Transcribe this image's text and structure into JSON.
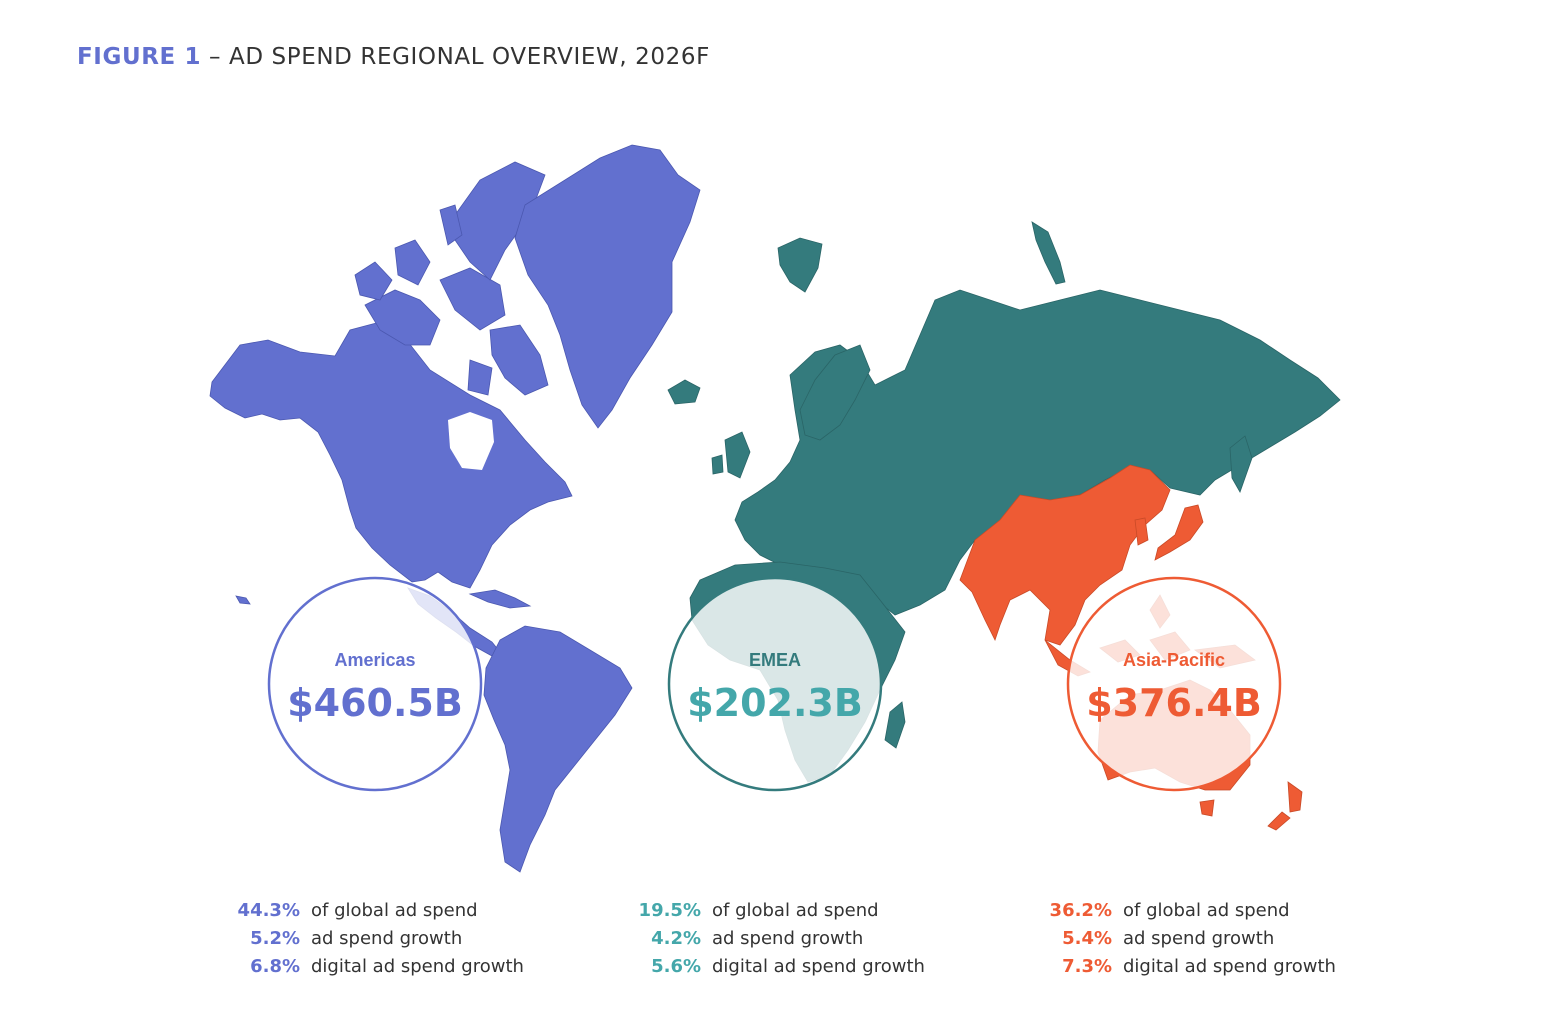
{
  "figure": {
    "label": "FIGURE 1",
    "title": " – AD SPEND REGIONAL OVERVIEW, 2026F"
  },
  "colors": {
    "americas": "#6270cf",
    "emea": "#347b7d",
    "emea_value": "#44a7aa",
    "asia_pacific": "#ee5b34"
  },
  "regions": [
    {
      "name": "Americas",
      "value": "$460.5B",
      "stats": [
        {
          "value": "44.3%",
          "label": "of global ad spend"
        },
        {
          "value": "5.2%",
          "label": "ad spend growth"
        },
        {
          "value": "6.8%",
          "label": "digital ad spend growth"
        }
      ]
    },
    {
      "name": "EMEA",
      "value": "$202.3B",
      "stats": [
        {
          "value": "19.5%",
          "label": "of global ad spend"
        },
        {
          "value": "4.2%",
          "label": "ad spend growth"
        },
        {
          "value": "5.6%",
          "label": "digital ad spend growth"
        }
      ]
    },
    {
      "name": "Asia-Pacific",
      "value": "$376.4B",
      "stats": [
        {
          "value": "36.2%",
          "label": "of global ad spend"
        },
        {
          "value": "5.4%",
          "label": "ad spend growth"
        },
        {
          "value": "7.3%",
          "label": "digital ad spend growth"
        }
      ]
    }
  ]
}
